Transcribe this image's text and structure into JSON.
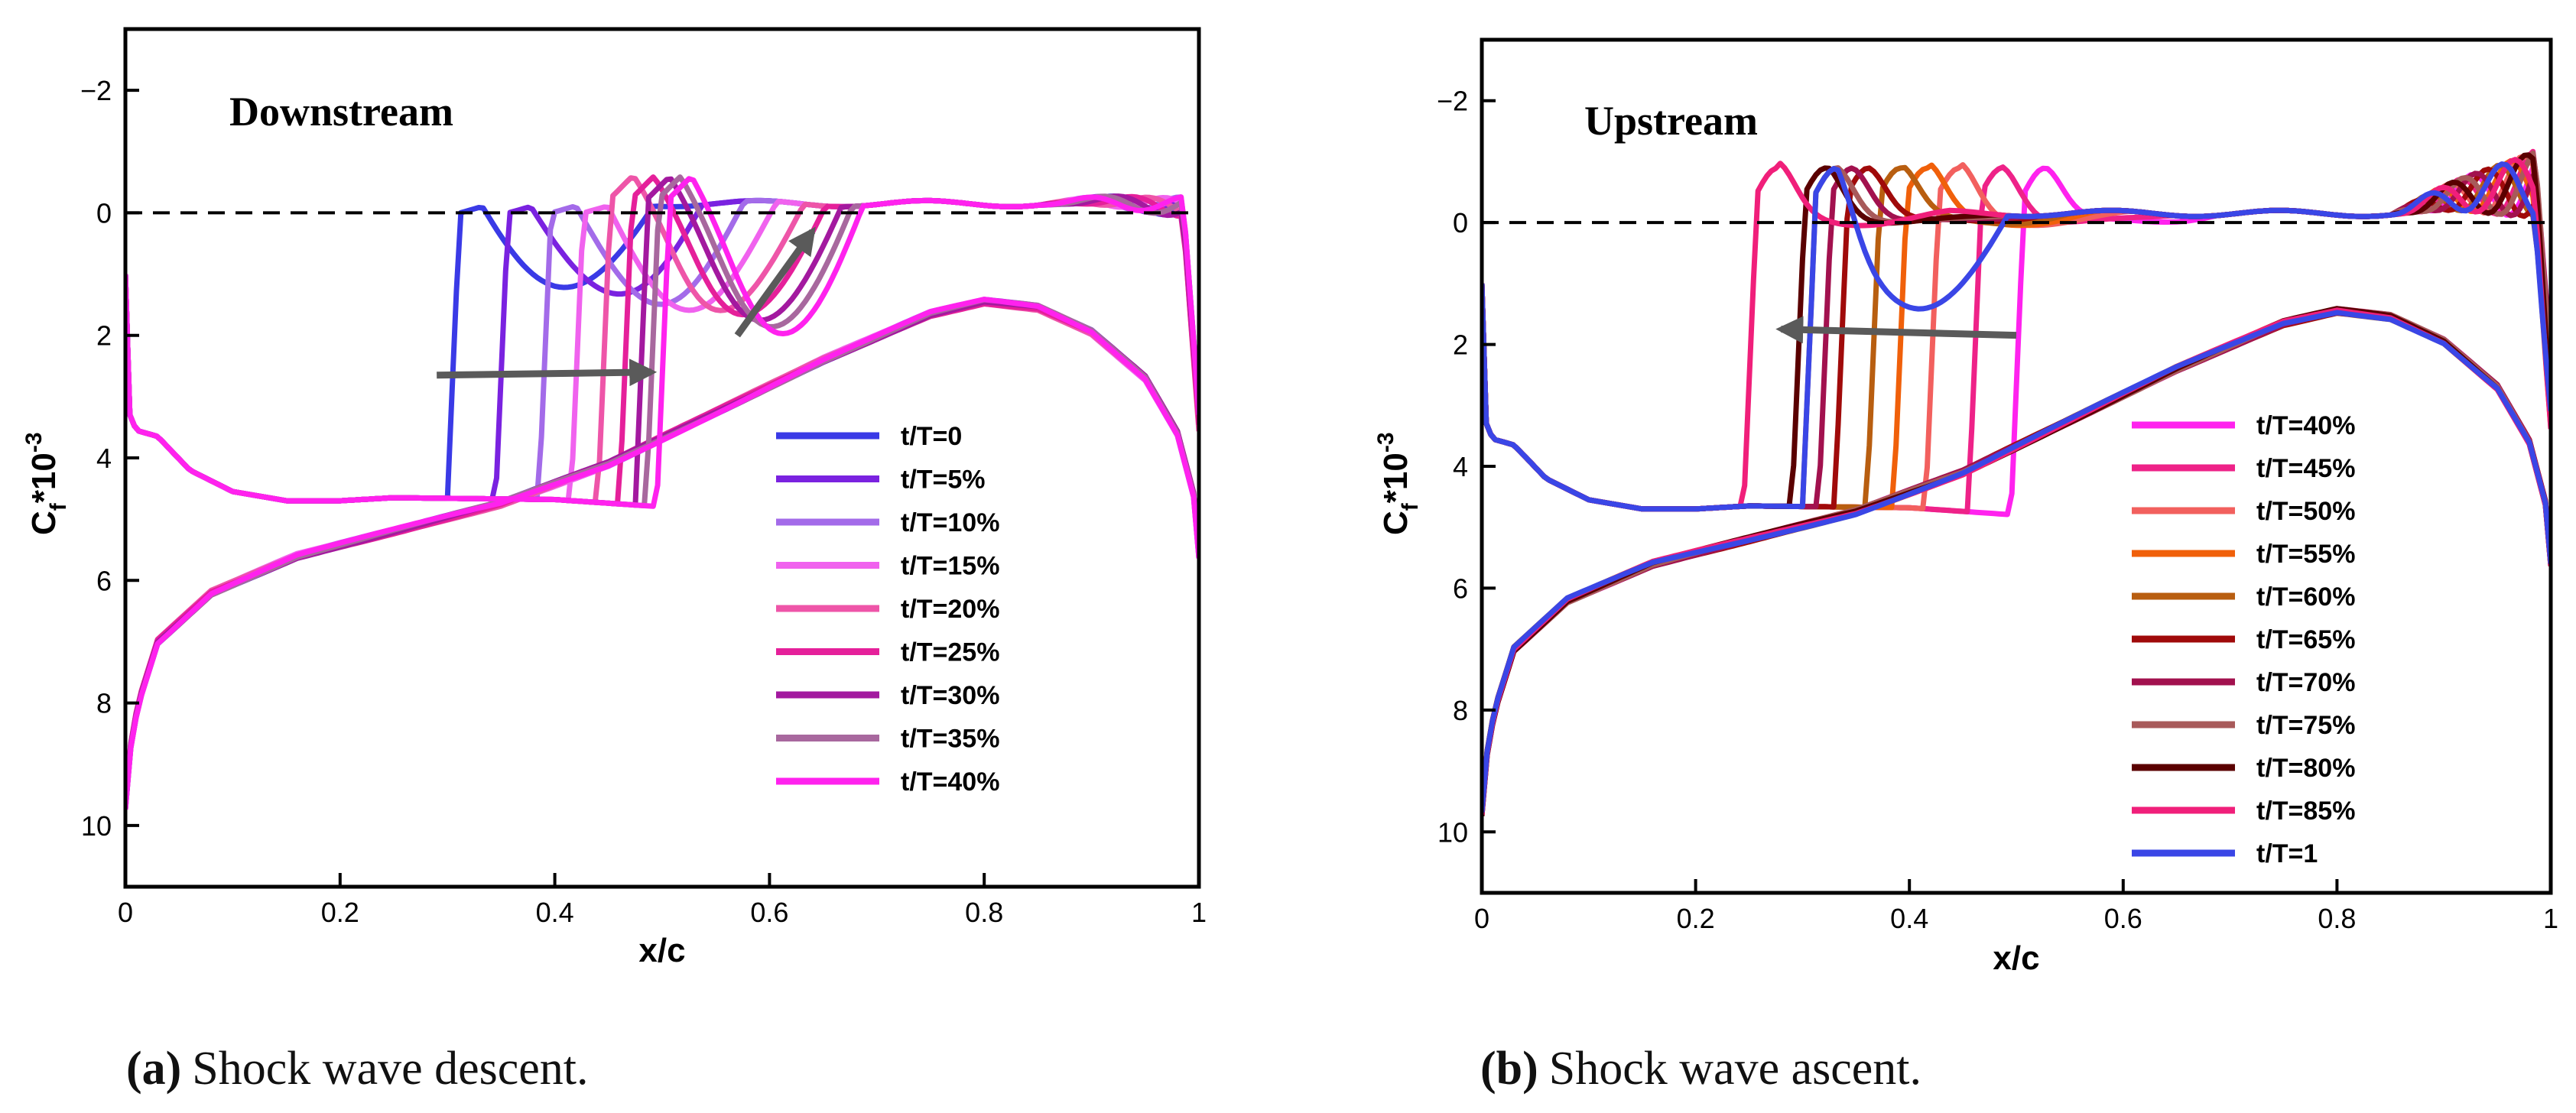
{
  "chart_data": [
    {
      "id": "a",
      "type": "line",
      "panel_label": "Downstream",
      "xlabel": "x/c",
      "ylabel_main": "C",
      "ylabel_sub": "f",
      "ylabel_rest": "*10",
      "ylabel_sup": "-3",
      "xlim": [
        0,
        1
      ],
      "ylim": [
        11,
        -3
      ],
      "y_inverted": true,
      "xticks": [
        0,
        0.2,
        0.4,
        0.6,
        0.8,
        1
      ],
      "xtick_labels": [
        "0",
        "0.2",
        "0.4",
        "0.6",
        "0.8",
        "1"
      ],
      "yticks": [
        -2,
        0,
        2,
        4,
        6,
        8,
        10
      ],
      "ytick_labels": [
        "−2",
        "0",
        "2",
        "4",
        "6",
        "8",
        "10"
      ],
      "reference_line_y": 0,
      "legend_position": "lower-right",
      "shock_direction": "downstream",
      "shock_arrow": {
        "from": [
          0.29,
          2.65
        ],
        "to": [
          0.49,
          2.6
        ]
      },
      "shock_arrow2": {
        "from": [
          0.57,
          2.0
        ],
        "to": [
          0.64,
          0.3
        ]
      },
      "series": [
        {
          "name": "t/T=0",
          "color": "#3a3ae6",
          "shock_x": 0.3
        },
        {
          "name": "t/T=5%",
          "color": "#7a22e0",
          "shock_x": 0.345
        },
        {
          "name": "t/T=10%",
          "color": "#a36be9",
          "shock_x": 0.385
        },
        {
          "name": "t/T=15%",
          "color": "#f062ee",
          "shock_x": 0.415
        },
        {
          "name": "t/T=20%",
          "color": "#ee55a8",
          "shock_x": 0.44
        },
        {
          "name": "t/T=25%",
          "color": "#e5209a",
          "shock_x": 0.46
        },
        {
          "name": "t/T=30%",
          "color": "#a3199f",
          "shock_x": 0.475
        },
        {
          "name": "t/T=35%",
          "color": "#a8689e",
          "shock_x": 0.485
        },
        {
          "name": "t/T=40%",
          "color": "#ff22ee",
          "shock_x": 0.495
        }
      ]
    },
    {
      "id": "b",
      "type": "line",
      "panel_label": "Upstream",
      "xlabel": "x/c",
      "ylabel_main": "C",
      "ylabel_sub": "f",
      "ylabel_rest": "*10",
      "ylabel_sup": "-3",
      "xlim": [
        0,
        1
      ],
      "ylim": [
        11,
        -3
      ],
      "y_inverted": true,
      "xticks": [
        0,
        0.2,
        0.4,
        0.6,
        0.8,
        1
      ],
      "xtick_labels": [
        "0",
        "0.2",
        "0.4",
        "0.6",
        "0.8",
        "1"
      ],
      "yticks": [
        -2,
        0,
        2,
        4,
        6,
        8,
        10
      ],
      "ytick_labels": [
        "−2",
        "0",
        "2",
        "4",
        "6",
        "8",
        "10"
      ],
      "reference_line_y": 0,
      "legend_position": "lower-right",
      "shock_direction": "upstream",
      "shock_arrow": {
        "from": [
          0.5,
          1.85
        ],
        "to": [
          0.28,
          1.75
        ]
      },
      "series": [
        {
          "name": "t/T=40%",
          "color": "#ff22ee",
          "shock_x": 0.495
        },
        {
          "name": "t/T=45%",
          "color": "#ee2288",
          "shock_x": 0.455
        },
        {
          "name": "t/T=50%",
          "color": "#f2605e",
          "shock_x": 0.415
        },
        {
          "name": "t/T=55%",
          "color": "#f0600a",
          "shock_x": 0.385
        },
        {
          "name": "t/T=60%",
          "color": "#b85e10",
          "shock_x": 0.36
        },
        {
          "name": "t/T=65%",
          "color": "#a00a0a",
          "shock_x": 0.33
        },
        {
          "name": "t/T=70%",
          "color": "#a2114e",
          "shock_x": 0.315
        },
        {
          "name": "t/T=75%",
          "color": "#a85a5a",
          "shock_x": 0.3
        },
        {
          "name": "t/T=80%",
          "color": "#5a0000",
          "shock_x": 0.29
        },
        {
          "name": "t/T=85%",
          "color": "#f01f7a",
          "shock_x": 0.245
        },
        {
          "name": "t/T=1",
          "color": "#3a46e6",
          "shock_x": 0.3
        }
      ]
    }
  ],
  "captions": [
    {
      "key": "(a)",
      "text": "Shock wave descent."
    },
    {
      "key": "(b)",
      "text": "Shock wave ascent."
    }
  ]
}
